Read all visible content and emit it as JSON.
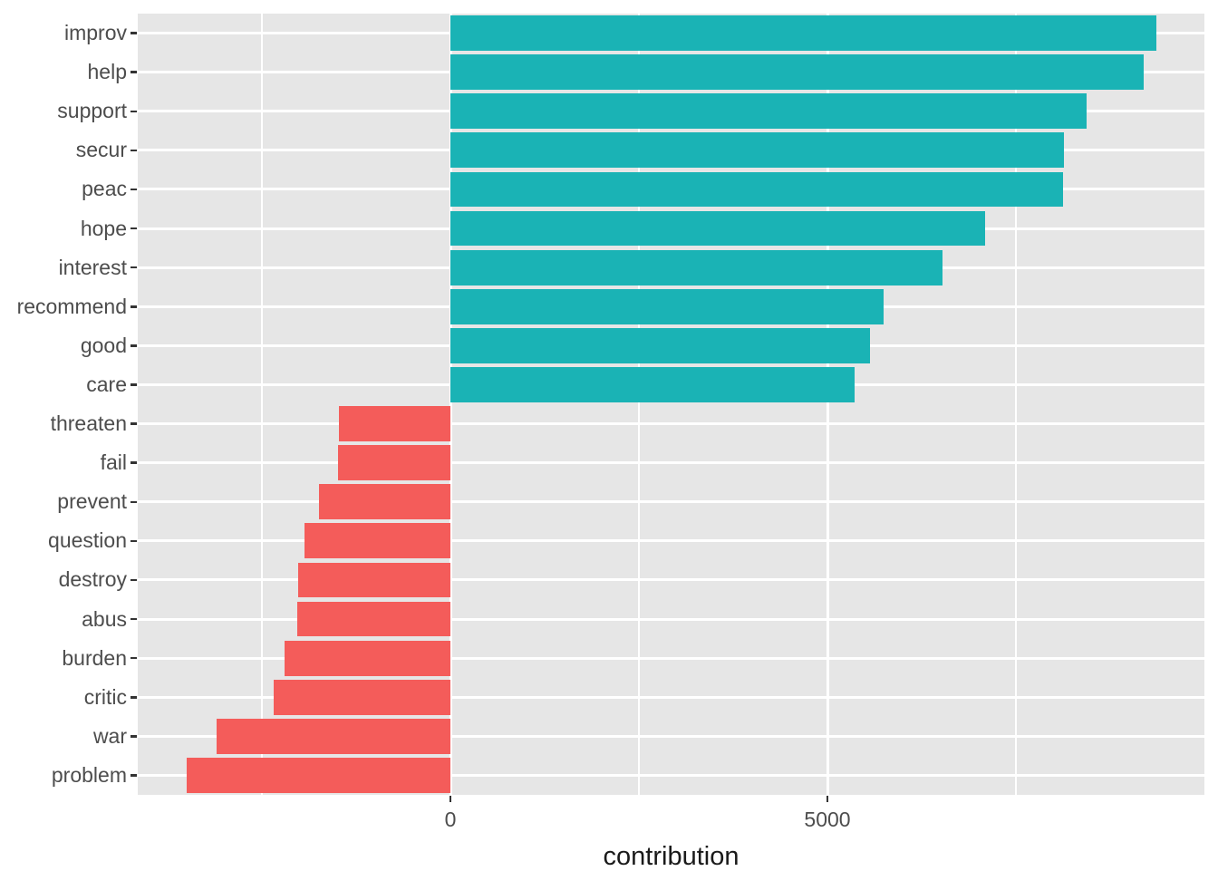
{
  "chart_data": {
    "type": "bar",
    "orientation": "horizontal",
    "title": "",
    "xlabel": "contribution",
    "ylabel": "",
    "categories": [
      "improv",
      "help",
      "support",
      "secur",
      "peac",
      "hope",
      "interest",
      "recommend",
      "good",
      "care",
      "threaten",
      "fail",
      "prevent",
      "question",
      "destroy",
      "abus",
      "burden",
      "critic",
      "war",
      "problem"
    ],
    "values": [
      9360,
      9190,
      8440,
      8140,
      8130,
      7090,
      6530,
      5750,
      5570,
      5360,
      -1480,
      -1490,
      -1740,
      -1940,
      -2020,
      -2030,
      -2200,
      -2340,
      -3100,
      -3500
    ],
    "xlim": [
      -4147,
      10000
    ],
    "x_major_ticks": [
      0,
      5000
    ],
    "x_tick_labels": [
      "0",
      "5000"
    ],
    "x_minor_gridlines": [
      -2500,
      2500,
      7500
    ],
    "bar_width_fraction": 0.9,
    "legend": "none",
    "grid": "on",
    "colors": {
      "positive_bar": "#1AB3B5",
      "negative_bar": "#F45C5A",
      "panel_background": "#E6E6E6",
      "gridline": "#FFFFFF",
      "tick_mark": "#333333",
      "axis_text": "#4D4D4D",
      "axis_title": "#1A1A1A"
    }
  }
}
